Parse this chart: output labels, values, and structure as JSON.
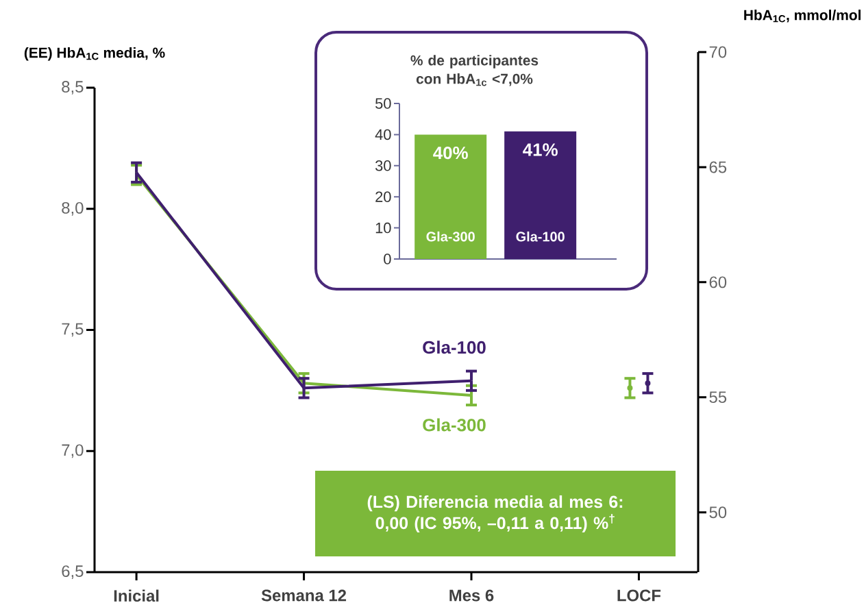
{
  "chart_data": [
    {
      "type": "line",
      "ylabel": "(EE) HbA$_{1C}$ media, %",
      "y2label": "HbA$_{1C}$, mmol/mol",
      "categories": [
        "Inicial",
        "Semana 12",
        "Mes 6",
        "LOCF"
      ],
      "ylim": [
        6.5,
        8.5
      ],
      "yticks": [
        {
          "value": 6.5,
          "label": "6,5"
        },
        {
          "value": 7.0,
          "label": "7,0"
        },
        {
          "value": 7.5,
          "label": "7,5"
        },
        {
          "value": 8.0,
          "label": "8,0"
        },
        {
          "value": 8.5,
          "label": "8,5"
        }
      ],
      "y2lim": [
        47.4,
        70
      ],
      "y2ticks": [
        50,
        55,
        60,
        65,
        70
      ],
      "grid": false,
      "marker": "none",
      "line_style": "solid",
      "series": [
        {
          "name": "Gla-300",
          "color": "#7cb83a",
          "values": [
            8.14,
            7.28,
            7.23,
            null
          ],
          "errors": [
            0.04,
            0.04,
            0.04,
            null
          ]
        },
        {
          "name": "Gla-100",
          "color": "#3f1f6e",
          "values": [
            8.15,
            7.26,
            7.29,
            null
          ],
          "errors": [
            0.04,
            0.04,
            0.04,
            null
          ]
        },
        {
          "type": "scatter",
          "color": "#7cb83a",
          "values": [
            null,
            null,
            null,
            7.26
          ],
          "errors": [
            null,
            null,
            null,
            0.04
          ]
        },
        {
          "type": "scatter",
          "color": "#3f1f6e",
          "values": [
            null,
            null,
            null,
            7.28
          ],
          "errors": [
            null,
            null,
            null,
            0.04
          ]
        }
      ],
      "annotations": [
        "(LS) Diferencia media al mes 6: 0,00 (IC 95%, –0,11 a 0,11) %$^{†}$"
      ]
    },
    {
      "type": "bar",
      "title": "% de participantes con HbA$_{1c}$ <7,0%",
      "categories": [
        "Gla-300",
        "Gla-100"
      ],
      "values": [
        40,
        41
      ],
      "colors": [
        "#7cb83a",
        "#3f1f6e"
      ],
      "value_labels": [
        "40%",
        "41%"
      ],
      "ylim": [
        0,
        50
      ],
      "yticks": [
        0,
        10,
        20,
        30,
        40,
        50
      ],
      "grid": false
    }
  ]
}
